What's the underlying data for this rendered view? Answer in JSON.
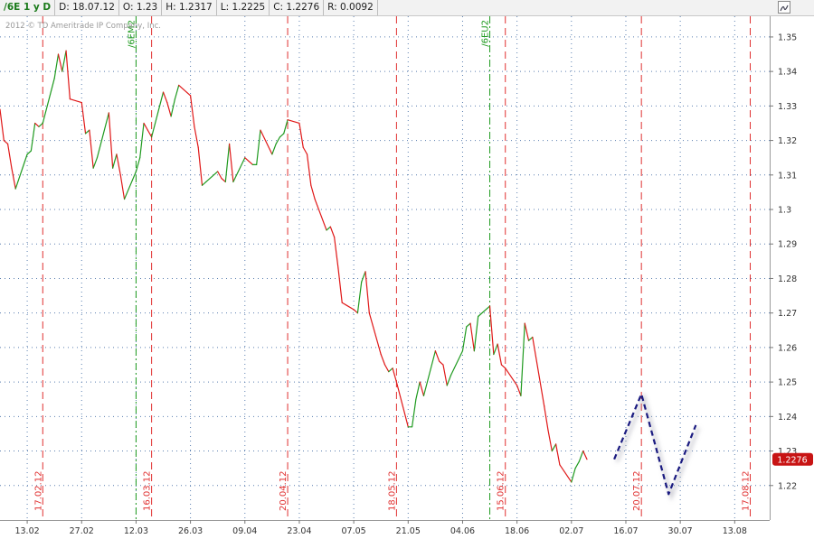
{
  "header": {
    "symbol": "/6E 1 y D",
    "date": "D: 18.07.12",
    "open": "O: 1.23",
    "high": "H: 1.2317",
    "low": "L: 1.2225",
    "close": "C: 1.2276",
    "range": "R: 0.0092"
  },
  "copyright": "2012 © TD Ameritrade IP Company, Inc.",
  "colors": {
    "up": "#1f9a1f",
    "down": "#e01818",
    "red_marker": "#e03030",
    "green_marker": "#1e9a1e",
    "projection": "#1a1a80",
    "price_badge": "#c81414",
    "grid": "#5b7fb0"
  },
  "chart_data": {
    "type": "line",
    "x_start": "2012-02-06",
    "x_end": "2012-08-22",
    "ylim": [
      1.21,
      1.356
    ],
    "yticks": [
      1.22,
      1.23,
      1.24,
      1.25,
      1.26,
      1.27,
      1.28,
      1.29,
      1.3,
      1.31,
      1.32,
      1.33,
      1.34,
      1.35
    ],
    "xticks": [
      {
        "label": "13.02",
        "date": "2012-02-13"
      },
      {
        "label": "27.02",
        "date": "2012-02-27"
      },
      {
        "label": "12.03",
        "date": "2012-03-12"
      },
      {
        "label": "26.03",
        "date": "2012-03-26"
      },
      {
        "label": "09.04",
        "date": "2012-04-09"
      },
      {
        "label": "23.04",
        "date": "2012-04-23"
      },
      {
        "label": "07.05",
        "date": "2012-05-07"
      },
      {
        "label": "21.05",
        "date": "2012-05-21"
      },
      {
        "label": "04.06",
        "date": "2012-06-04"
      },
      {
        "label": "18.06",
        "date": "2012-06-18"
      },
      {
        "label": "02.07",
        "date": "2012-07-02"
      },
      {
        "label": "16.07",
        "date": "2012-07-16"
      },
      {
        "label": "30.07",
        "date": "2012-07-30"
      },
      {
        "label": "13.08",
        "date": "2012-08-13"
      }
    ],
    "price_label": "1.2276",
    "price_value": 1.2276,
    "series": [
      {
        "values": [
          {
            "date": "2012-02-06",
            "value": 1.329
          },
          {
            "date": "2012-02-07",
            "value": 1.32
          },
          {
            "date": "2012-02-08",
            "value": 1.319
          },
          {
            "date": "2012-02-09",
            "value": 1.312
          },
          {
            "date": "2012-02-10",
            "value": 1.306
          },
          {
            "date": "2012-02-13",
            "value": 1.316
          },
          {
            "date": "2012-02-14",
            "value": 1.317
          },
          {
            "date": "2012-02-15",
            "value": 1.325
          },
          {
            "date": "2012-02-16",
            "value": 1.324
          },
          {
            "date": "2012-02-17",
            "value": 1.325
          },
          {
            "date": "2012-02-20",
            "value": 1.338
          },
          {
            "date": "2012-02-21",
            "value": 1.345
          },
          {
            "date": "2012-02-22",
            "value": 1.34
          },
          {
            "date": "2012-02-23",
            "value": 1.346
          },
          {
            "date": "2012-02-24",
            "value": 1.332
          },
          {
            "date": "2012-02-27",
            "value": 1.331
          },
          {
            "date": "2012-02-28",
            "value": 1.322
          },
          {
            "date": "2012-02-29",
            "value": 1.323
          },
          {
            "date": "2012-03-01",
            "value": 1.312
          },
          {
            "date": "2012-03-02",
            "value": 1.315
          },
          {
            "date": "2012-03-05",
            "value": 1.328
          },
          {
            "date": "2012-03-06",
            "value": 1.312
          },
          {
            "date": "2012-03-07",
            "value": 1.316
          },
          {
            "date": "2012-03-08",
            "value": 1.31
          },
          {
            "date": "2012-03-09",
            "value": 1.303
          },
          {
            "date": "2012-03-12",
            "value": 1.311
          },
          {
            "date": "2012-03-13",
            "value": 1.315
          },
          {
            "date": "2012-03-14",
            "value": 1.325
          },
          {
            "date": "2012-03-15",
            "value": 1.323
          },
          {
            "date": "2012-03-16",
            "value": 1.321
          },
          {
            "date": "2012-03-19",
            "value": 1.334
          },
          {
            "date": "2012-03-20",
            "value": 1.331
          },
          {
            "date": "2012-03-21",
            "value": 1.327
          },
          {
            "date": "2012-03-22",
            "value": 1.332
          },
          {
            "date": "2012-03-23",
            "value": 1.336
          },
          {
            "date": "2012-03-26",
            "value": 1.333
          },
          {
            "date": "2012-03-27",
            "value": 1.324
          },
          {
            "date": "2012-03-28",
            "value": 1.318
          },
          {
            "date": "2012-03-29",
            "value": 1.307
          },
          {
            "date": "2012-03-30",
            "value": 1.308
          },
          {
            "date": "2012-04-02",
            "value": 1.311
          },
          {
            "date": "2012-04-03",
            "value": 1.309
          },
          {
            "date": "2012-04-04",
            "value": 1.308
          },
          {
            "date": "2012-04-05",
            "value": 1.319
          },
          {
            "date": "2012-04-06",
            "value": 1.308
          },
          {
            "date": "2012-04-09",
            "value": 1.315
          },
          {
            "date": "2012-04-10",
            "value": 1.314
          },
          {
            "date": "2012-04-11",
            "value": 1.313
          },
          {
            "date": "2012-04-12",
            "value": 1.313
          },
          {
            "date": "2012-04-13",
            "value": 1.323
          },
          {
            "date": "2012-04-16",
            "value": 1.316
          },
          {
            "date": "2012-04-17",
            "value": 1.319
          },
          {
            "date": "2012-04-18",
            "value": 1.321
          },
          {
            "date": "2012-04-19",
            "value": 1.322
          },
          {
            "date": "2012-04-20",
            "value": 1.326
          },
          {
            "date": "2012-04-23",
            "value": 1.325
          },
          {
            "date": "2012-04-24",
            "value": 1.318
          },
          {
            "date": "2012-04-25",
            "value": 1.316
          },
          {
            "date": "2012-04-26",
            "value": 1.307
          },
          {
            "date": "2012-04-27",
            "value": 1.303
          },
          {
            "date": "2012-04-30",
            "value": 1.294
          },
          {
            "date": "2012-05-01",
            "value": 1.295
          },
          {
            "date": "2012-05-02",
            "value": 1.292
          },
          {
            "date": "2012-05-03",
            "value": 1.283
          },
          {
            "date": "2012-05-04",
            "value": 1.273
          },
          {
            "date": "2012-05-07",
            "value": 1.271
          },
          {
            "date": "2012-05-08",
            "value": 1.27
          },
          {
            "date": "2012-05-09",
            "value": 1.279
          },
          {
            "date": "2012-05-10",
            "value": 1.282
          },
          {
            "date": "2012-05-11",
            "value": 1.27
          },
          {
            "date": "2012-05-14",
            "value": 1.258
          },
          {
            "date": "2012-05-15",
            "value": 1.255
          },
          {
            "date": "2012-05-16",
            "value": 1.253
          },
          {
            "date": "2012-05-17",
            "value": 1.254
          },
          {
            "date": "2012-05-18",
            "value": 1.25
          },
          {
            "date": "2012-05-21",
            "value": 1.237
          },
          {
            "date": "2012-05-22",
            "value": 1.237
          },
          {
            "date": "2012-05-23",
            "value": 1.245
          },
          {
            "date": "2012-05-24",
            "value": 1.25
          },
          {
            "date": "2012-05-25",
            "value": 1.246
          },
          {
            "date": "2012-05-28",
            "value": 1.259
          },
          {
            "date": "2012-05-29",
            "value": 1.256
          },
          {
            "date": "2012-05-30",
            "value": 1.255
          },
          {
            "date": "2012-05-31",
            "value": 1.249
          },
          {
            "date": "2012-06-01",
            "value": 1.252
          },
          {
            "date": "2012-06-04",
            "value": 1.259
          },
          {
            "date": "2012-06-05",
            "value": 1.266
          },
          {
            "date": "2012-06-06",
            "value": 1.267
          },
          {
            "date": "2012-06-07",
            "value": 1.259
          },
          {
            "date": "2012-06-08",
            "value": 1.269
          },
          {
            "date": "2012-06-11",
            "value": 1.272
          },
          {
            "date": "2012-06-12",
            "value": 1.258
          },
          {
            "date": "2012-06-13",
            "value": 1.261
          },
          {
            "date": "2012-06-14",
            "value": 1.255
          },
          {
            "date": "2012-06-15",
            "value": 1.254
          },
          {
            "date": "2012-06-18",
            "value": 1.249
          },
          {
            "date": "2012-06-19",
            "value": 1.246
          },
          {
            "date": "2012-06-20",
            "value": 1.267
          },
          {
            "date": "2012-06-21",
            "value": 1.262
          },
          {
            "date": "2012-06-22",
            "value": 1.263
          },
          {
            "date": "2012-06-25",
            "value": 1.243
          },
          {
            "date": "2012-06-26",
            "value": 1.236
          },
          {
            "date": "2012-06-27",
            "value": 1.23
          },
          {
            "date": "2012-06-28",
            "value": 1.232
          },
          {
            "date": "2012-06-29",
            "value": 1.226
          },
          {
            "date": "2012-07-02",
            "value": 1.221
          },
          {
            "date": "2012-07-03",
            "value": 1.225
          },
          {
            "date": "2012-07-04",
            "value": 1.227
          },
          {
            "date": "2012-07-05",
            "value": 1.23
          },
          {
            "date": "2012-07-06",
            "value": 1.2276
          }
        ]
      }
    ],
    "projection": [
      {
        "date": "2012-07-13",
        "value": 1.2276
      },
      {
        "date": "2012-07-20",
        "value": 1.2465
      },
      {
        "date": "2012-07-27",
        "value": 1.2175
      },
      {
        "date": "2012-08-03",
        "value": 1.2375
      }
    ],
    "marker_lines": [
      {
        "label": "17.02.12",
        "date": "2012-02-17",
        "color": "red"
      },
      {
        "label": "/6EM2",
        "date": "2012-03-12",
        "color": "green"
      },
      {
        "label": "16.03.12",
        "date": "2012-03-16",
        "color": "red"
      },
      {
        "label": "20.04.12",
        "date": "2012-04-20",
        "color": "red"
      },
      {
        "label": "18.05.12",
        "date": "2012-05-18",
        "color": "red"
      },
      {
        "label": "/6EU2",
        "date": "2012-06-11",
        "color": "green"
      },
      {
        "label": "15.06.12",
        "date": "2012-06-15",
        "color": "red"
      },
      {
        "label": "20.07.12",
        "date": "2012-07-20",
        "color": "red"
      },
      {
        "label": "17.08.12",
        "date": "2012-08-17",
        "color": "red"
      }
    ]
  }
}
